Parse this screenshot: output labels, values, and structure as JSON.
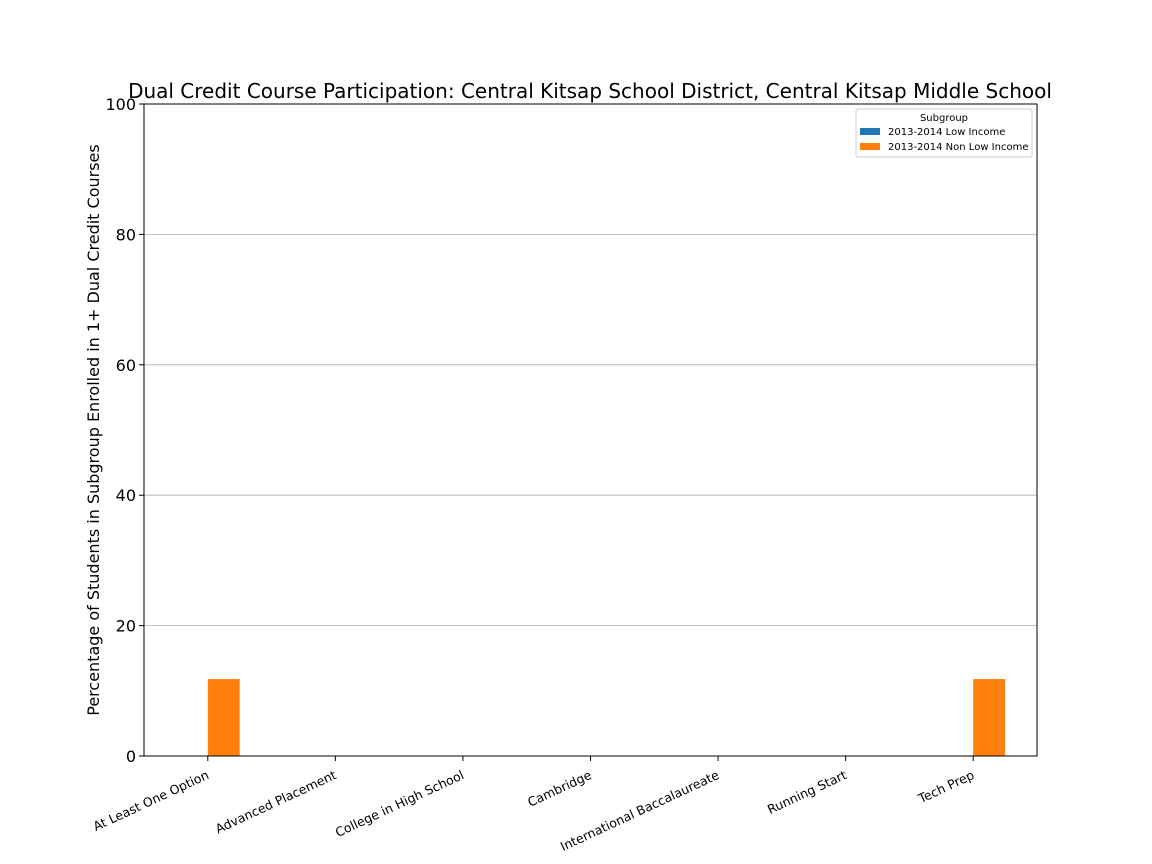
{
  "chart_data": {
    "type": "bar",
    "title": "Dual Credit Course Participation: Central Kitsap School District, Central Kitsap Middle School",
    "xlabel": "",
    "ylabel": "Percentage of Students in Subgroup Enrolled in 1+ Dual Credit Courses",
    "categories": [
      "At Least One Option",
      "Advanced Placement",
      "College in High School",
      "Cambridge",
      "International Baccalaureate",
      "Running Start",
      "Tech Prep"
    ],
    "series": [
      {
        "name": "2013-2014 Low Income",
        "color": "#1f77b4",
        "values": [
          0,
          0,
          0,
          0,
          0,
          0,
          0
        ]
      },
      {
        "name": "2013-2014 Non Low Income",
        "color": "#ff7f0e",
        "values": [
          11.8,
          0,
          0,
          0,
          0,
          0,
          11.8
        ]
      }
    ],
    "ylim": [
      0,
      100
    ],
    "yticks": [
      0,
      20,
      40,
      60,
      80,
      100
    ],
    "grid": "y",
    "legend": {
      "title": "Subgroup",
      "position": "top-right"
    }
  }
}
